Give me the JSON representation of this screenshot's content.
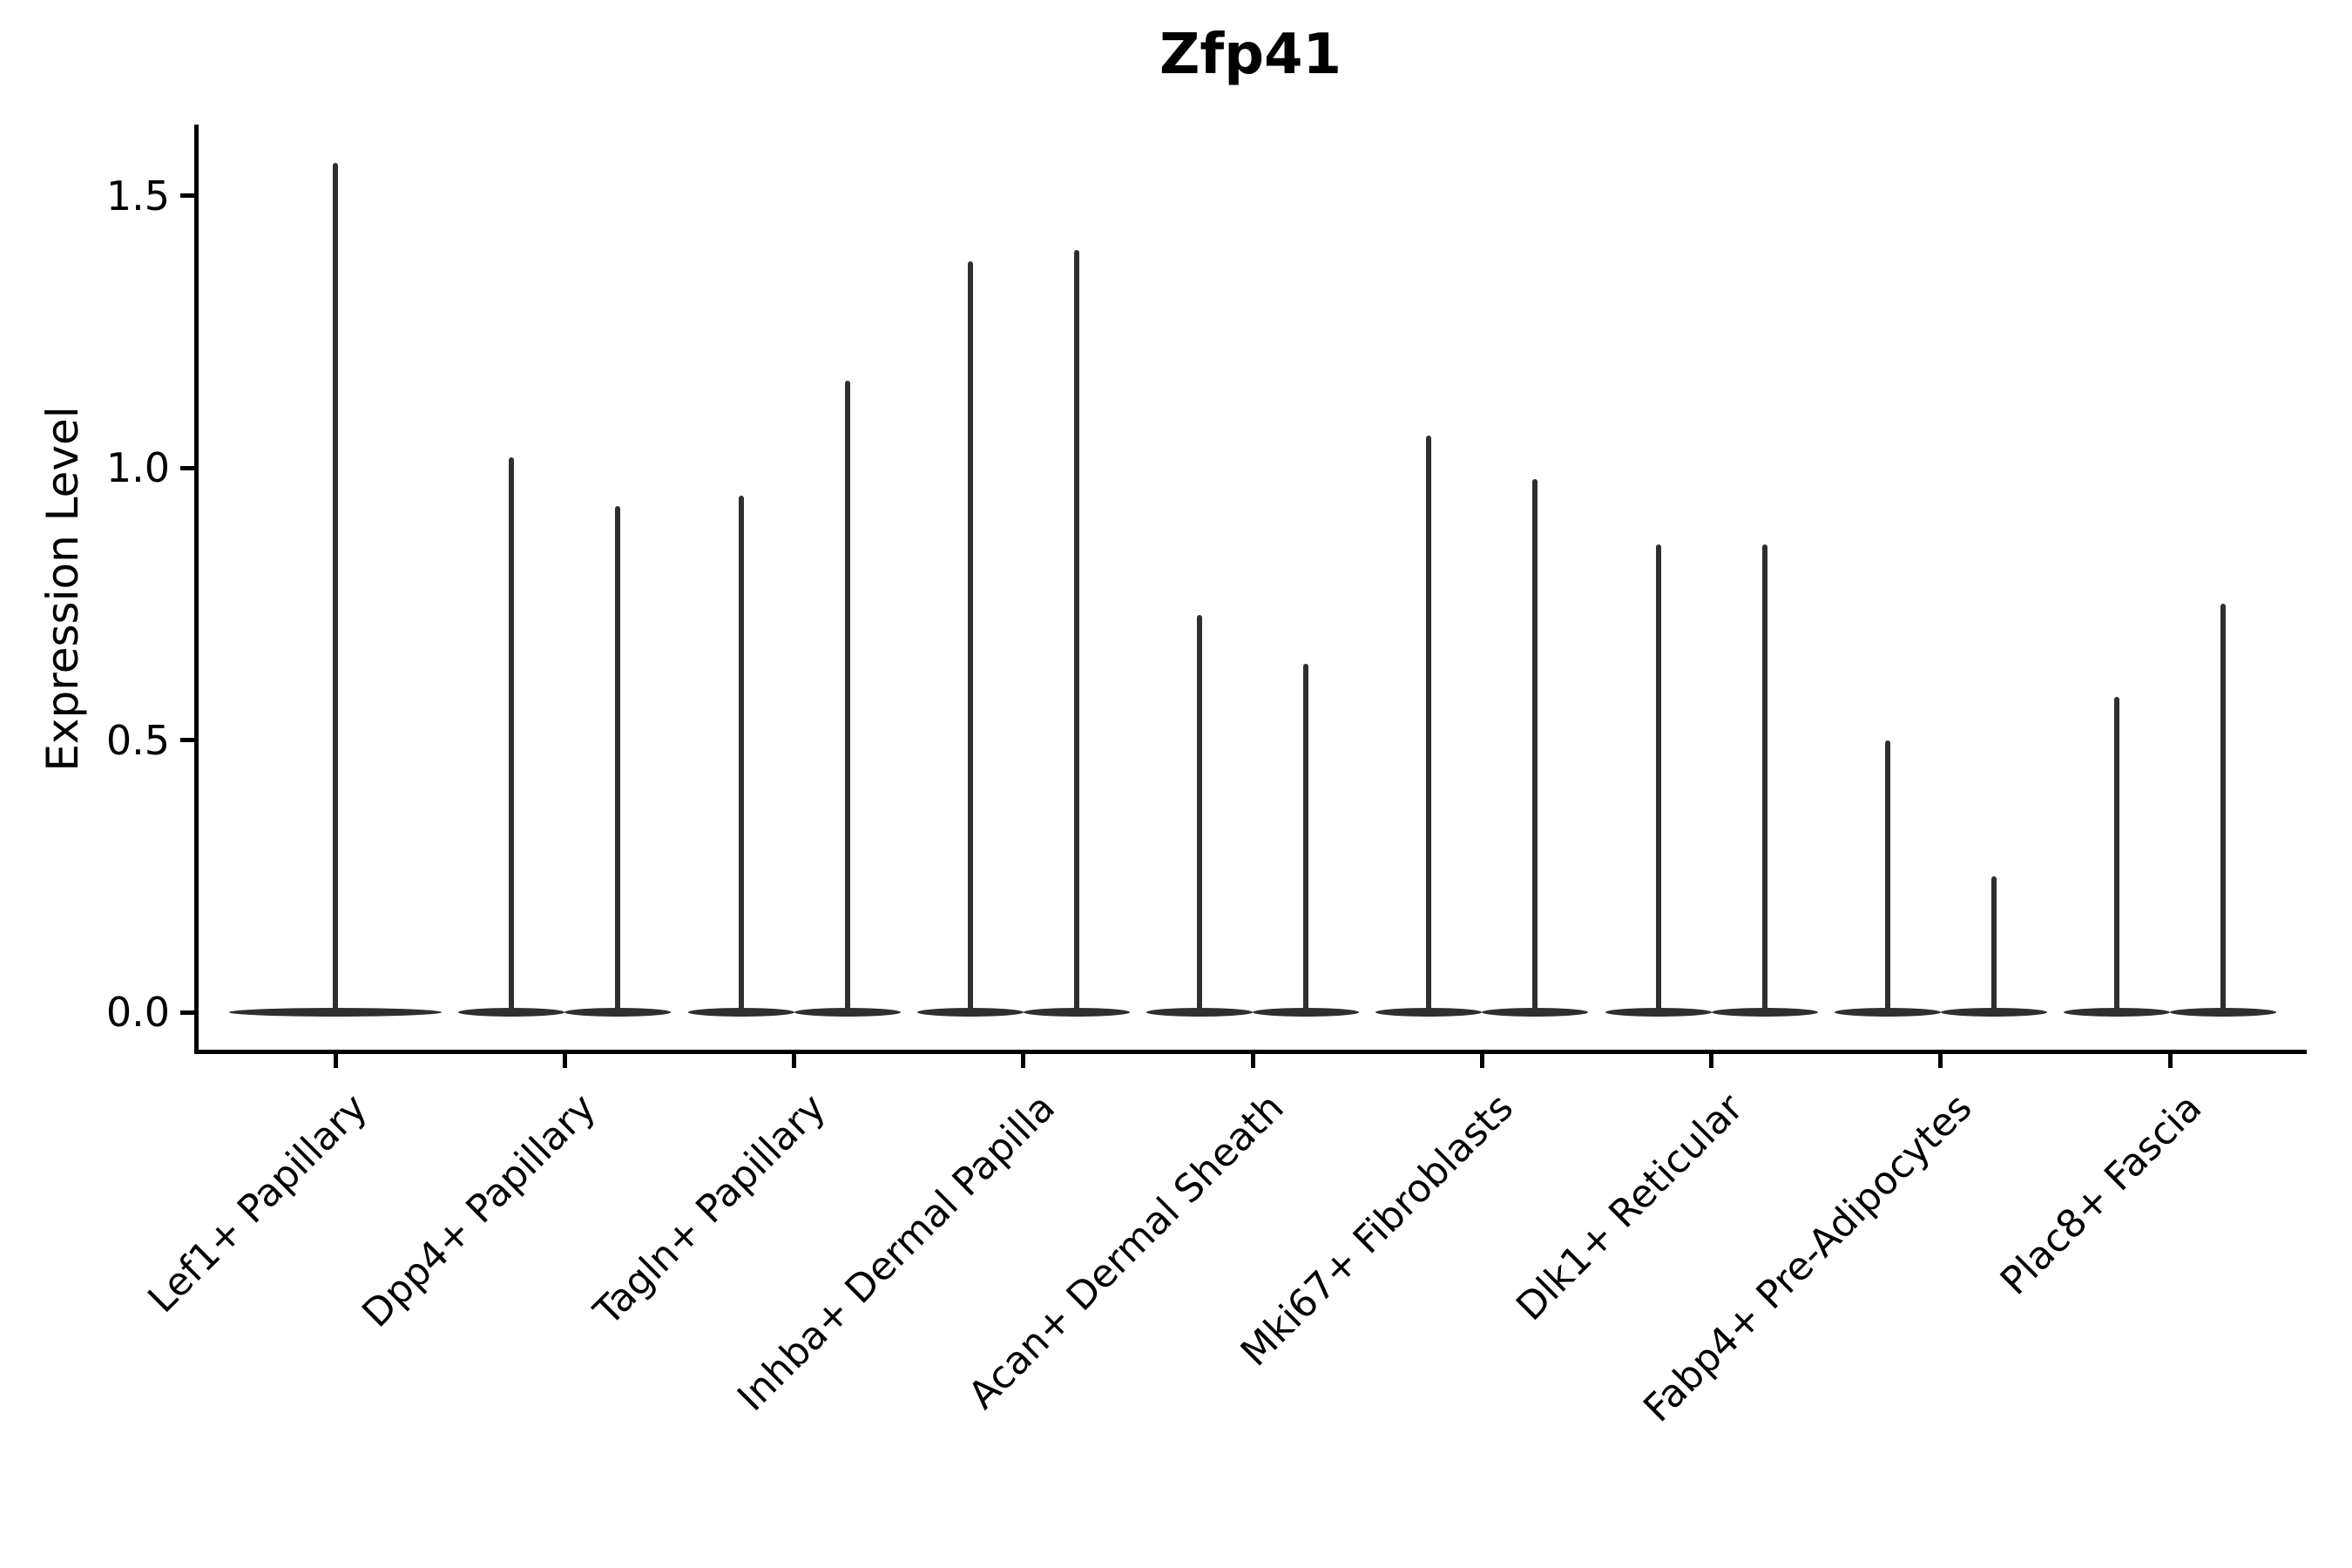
{
  "page": {
    "background_color": "#ffffff"
  },
  "chart_data": {
    "type": "violin",
    "title": "Zfp41",
    "xlabel": "",
    "ylabel": "Expression Level",
    "ylim": [
      -0.08,
      1.63
    ],
    "yticks": [
      0,
      0.5,
      1,
      1.5
    ],
    "ytick_labels": [
      "0.0",
      "0.5",
      "1.0",
      "1.5"
    ],
    "grid": false,
    "legend": "none",
    "style_note": "Seurat-style violin plot of gene expression; nearly all density sits at 0 (wide flat base) with a thin central needle rising to each violin's maximum expression value; first category has a single full-width violin, all others have two half-width violins per category",
    "violin_color": "#2f2f2f",
    "axis_color": "#000000",
    "categories": [
      "Lef1+ Papillary",
      "Dpp4+ Papillary",
      "Tagln+ Papillary",
      "Inhba+ Dermal Papilla",
      "Acan+ Dermal Sheath",
      "Mki67+ Fibroblasts",
      "Dlk1+ Reticular",
      "Fabp4+ Pre-Adipocytes",
      "Plac8+ Fascia"
    ],
    "violins": [
      {
        "category": "Lef1+ Papillary",
        "needles": [
          {
            "offset": 0,
            "rel_width": 1.0,
            "max_expression": 1.56
          }
        ]
      },
      {
        "category": "Dpp4+ Papillary",
        "needles": [
          {
            "offset": -0.5,
            "rel_width": 0.5,
            "max_expression": 1.02
          },
          {
            "offset": 0.5,
            "rel_width": 0.5,
            "max_expression": 0.93
          }
        ]
      },
      {
        "category": "Tagln+ Papillary",
        "needles": [
          {
            "offset": -0.5,
            "rel_width": 0.5,
            "max_expression": 0.95
          },
          {
            "offset": 0.5,
            "rel_width": 0.5,
            "max_expression": 1.16
          }
        ]
      },
      {
        "category": "Inhba+ Dermal Papilla",
        "needles": [
          {
            "offset": -0.5,
            "rel_width": 0.5,
            "max_expression": 1.38
          },
          {
            "offset": 0.5,
            "rel_width": 0.5,
            "max_expression": 1.4
          }
        ]
      },
      {
        "category": "Acan+ Dermal Sheath",
        "needles": [
          {
            "offset": -0.5,
            "rel_width": 0.5,
            "max_expression": 0.73
          },
          {
            "offset": 0.5,
            "rel_width": 0.5,
            "max_expression": 0.64
          }
        ]
      },
      {
        "category": "Mki67+ Fibroblasts",
        "needles": [
          {
            "offset": -0.5,
            "rel_width": 0.5,
            "max_expression": 1.06
          },
          {
            "offset": 0.5,
            "rel_width": 0.5,
            "max_expression": 0.98
          }
        ]
      },
      {
        "category": "Dlk1+ Reticular",
        "needles": [
          {
            "offset": -0.5,
            "rel_width": 0.5,
            "max_expression": 0.86
          },
          {
            "offset": 0.5,
            "rel_width": 0.5,
            "max_expression": 0.86
          }
        ]
      },
      {
        "category": "Fabp4+ Pre-Adipocytes",
        "needles": [
          {
            "offset": -0.5,
            "rel_width": 0.5,
            "max_expression": 0.5
          },
          {
            "offset": 0.5,
            "rel_width": 0.5,
            "max_expression": 0.25
          }
        ]
      },
      {
        "category": "Plac8+ Fascia",
        "needles": [
          {
            "offset": -0.5,
            "rel_width": 0.5,
            "max_expression": 0.58
          },
          {
            "offset": 0.5,
            "rel_width": 0.5,
            "max_expression": 0.75
          }
        ]
      }
    ]
  }
}
